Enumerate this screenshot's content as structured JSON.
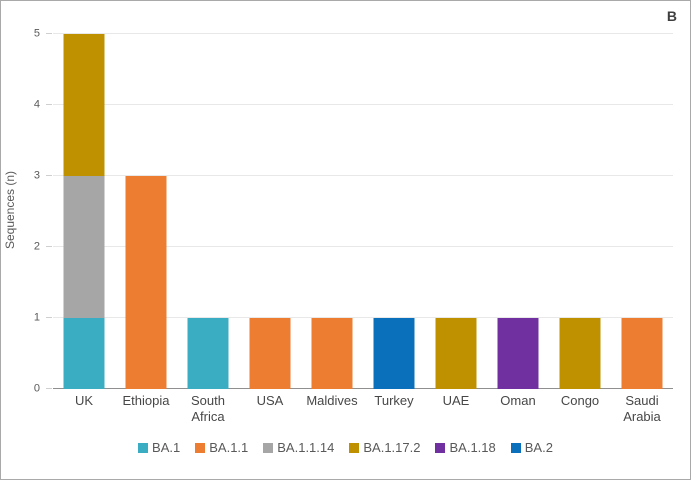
{
  "figure": {
    "panel_label": "B"
  },
  "chart_data": {
    "type": "bar",
    "stacked": true,
    "title": "",
    "xlabel": "",
    "ylabel": "Sequences (n)",
    "ylim": [
      0,
      5
    ],
    "yticks": [
      0,
      1,
      2,
      3,
      4,
      5
    ],
    "grid": true,
    "legend_position": "bottom",
    "categories": [
      "UK",
      "Ethiopia",
      "South Africa",
      "USA",
      "Maldives",
      "Turkey",
      "UAE",
      "Oman",
      "Congo",
      "Saudi Arabia"
    ],
    "series": [
      {
        "name": "BA.1",
        "color": "#3badc2",
        "values": [
          1,
          0,
          1,
          0,
          0,
          0,
          0,
          0,
          0,
          0
        ]
      },
      {
        "name": "BA.1.1",
        "color": "#ed7d31",
        "values": [
          0,
          3,
          0,
          1,
          1,
          0,
          0,
          0,
          0,
          1
        ]
      },
      {
        "name": "BA.1.1.14",
        "color": "#a6a6a6",
        "values": [
          2,
          0,
          0,
          0,
          0,
          0,
          0,
          0,
          0,
          0
        ]
      },
      {
        "name": "BA.1.17.2",
        "color": "#bf9000",
        "values": [
          2,
          0,
          0,
          0,
          0,
          0,
          1,
          0,
          1,
          0
        ]
      },
      {
        "name": "BA.1.18",
        "color": "#7030a0",
        "values": [
          0,
          0,
          0,
          0,
          0,
          0,
          0,
          1,
          0,
          0
        ]
      },
      {
        "name": "BA.2",
        "color": "#0b70bb",
        "values": [
          0,
          0,
          0,
          0,
          0,
          1,
          0,
          0,
          0,
          0
        ]
      }
    ],
    "totals": {
      "UK": 5,
      "Ethiopia": 3,
      "South Africa": 1,
      "USA": 1,
      "Maldives": 1,
      "Turkey": 1,
      "UAE": 1,
      "Oman": 1,
      "Congo": 1,
      "Saudi Arabia": 1
    },
    "colors": {
      "gridline": "#e8e8e8",
      "baseline": "#8f8f8f",
      "tick_text": "#595959",
      "axis_title_text": "#595959",
      "category_text": "#474747",
      "legend_text": "#595959",
      "panel_label_text": "#3f3f3f",
      "figure_border": "#a9a9a9"
    }
  }
}
